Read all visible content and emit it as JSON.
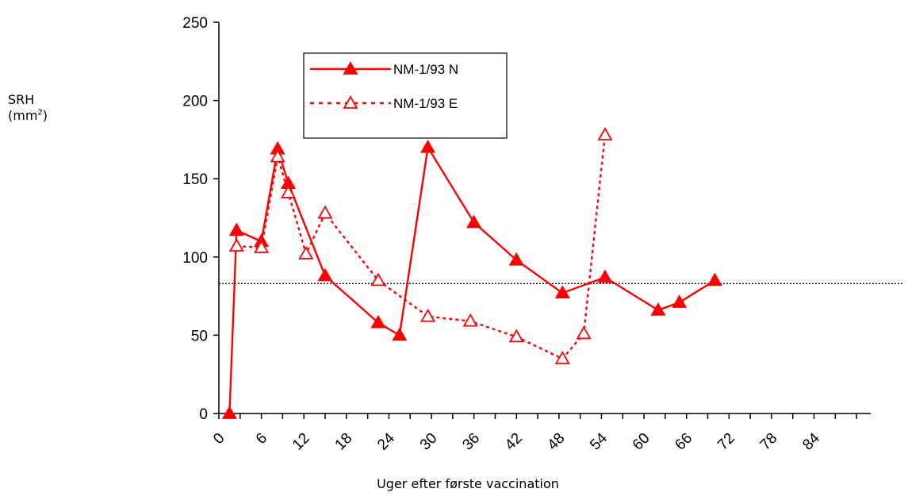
{
  "chart_data": {
    "type": "line",
    "xlabel": "Uger efter første vaccination",
    "ylabel": {
      "text": "SRH",
      "unit_prefix": "(mm",
      "unit_sup": "2",
      "unit_suffix": ")"
    },
    "x_ticks": [
      "0",
      "6",
      "12",
      "18",
      "24",
      "30",
      "36",
      "42",
      "48",
      "54",
      "60",
      "66",
      "72",
      "78",
      "84"
    ],
    "y_ticks": [
      "0",
      "50",
      "100",
      "150",
      "200",
      "250"
    ],
    "xlim": [
      0,
      92
    ],
    "ylim": [
      0,
      250
    ],
    "reference_line": {
      "y": 83,
      "style": "dotted"
    },
    "legend": {
      "placement": "top-left"
    },
    "series": [
      {
        "name": "NM-1/93 N",
        "line_style": "solid",
        "marker": "filled-triangle",
        "color": "#ff0000",
        "points": [
          [
            1.5,
            0
          ],
          [
            2.5,
            117
          ],
          [
            6,
            110
          ],
          [
            8.3,
            169
          ],
          [
            9.8,
            147
          ],
          [
            15,
            88
          ],
          [
            22.5,
            58
          ],
          [
            25.5,
            50
          ],
          [
            29.5,
            170
          ],
          [
            36,
            122
          ],
          [
            42,
            98
          ],
          [
            48.5,
            77
          ],
          [
            54.5,
            87
          ],
          [
            62,
            66
          ],
          [
            65,
            71
          ],
          [
            70,
            85
          ]
        ]
      },
      {
        "name": "NM-1/93 E",
        "line_style": "dotted",
        "marker": "open-triangle",
        "color": "#ff0000",
        "points": [
          [
            2.5,
            107
          ],
          [
            6,
            106
          ],
          [
            8.3,
            164
          ],
          [
            9.8,
            141
          ],
          [
            12.3,
            102
          ],
          [
            15,
            128
          ],
          [
            22.5,
            85
          ],
          [
            29.5,
            62
          ],
          [
            35.5,
            59
          ],
          [
            42,
            49
          ],
          [
            48.5,
            35
          ],
          [
            51.5,
            51
          ],
          [
            54.5,
            178
          ]
        ]
      }
    ]
  }
}
